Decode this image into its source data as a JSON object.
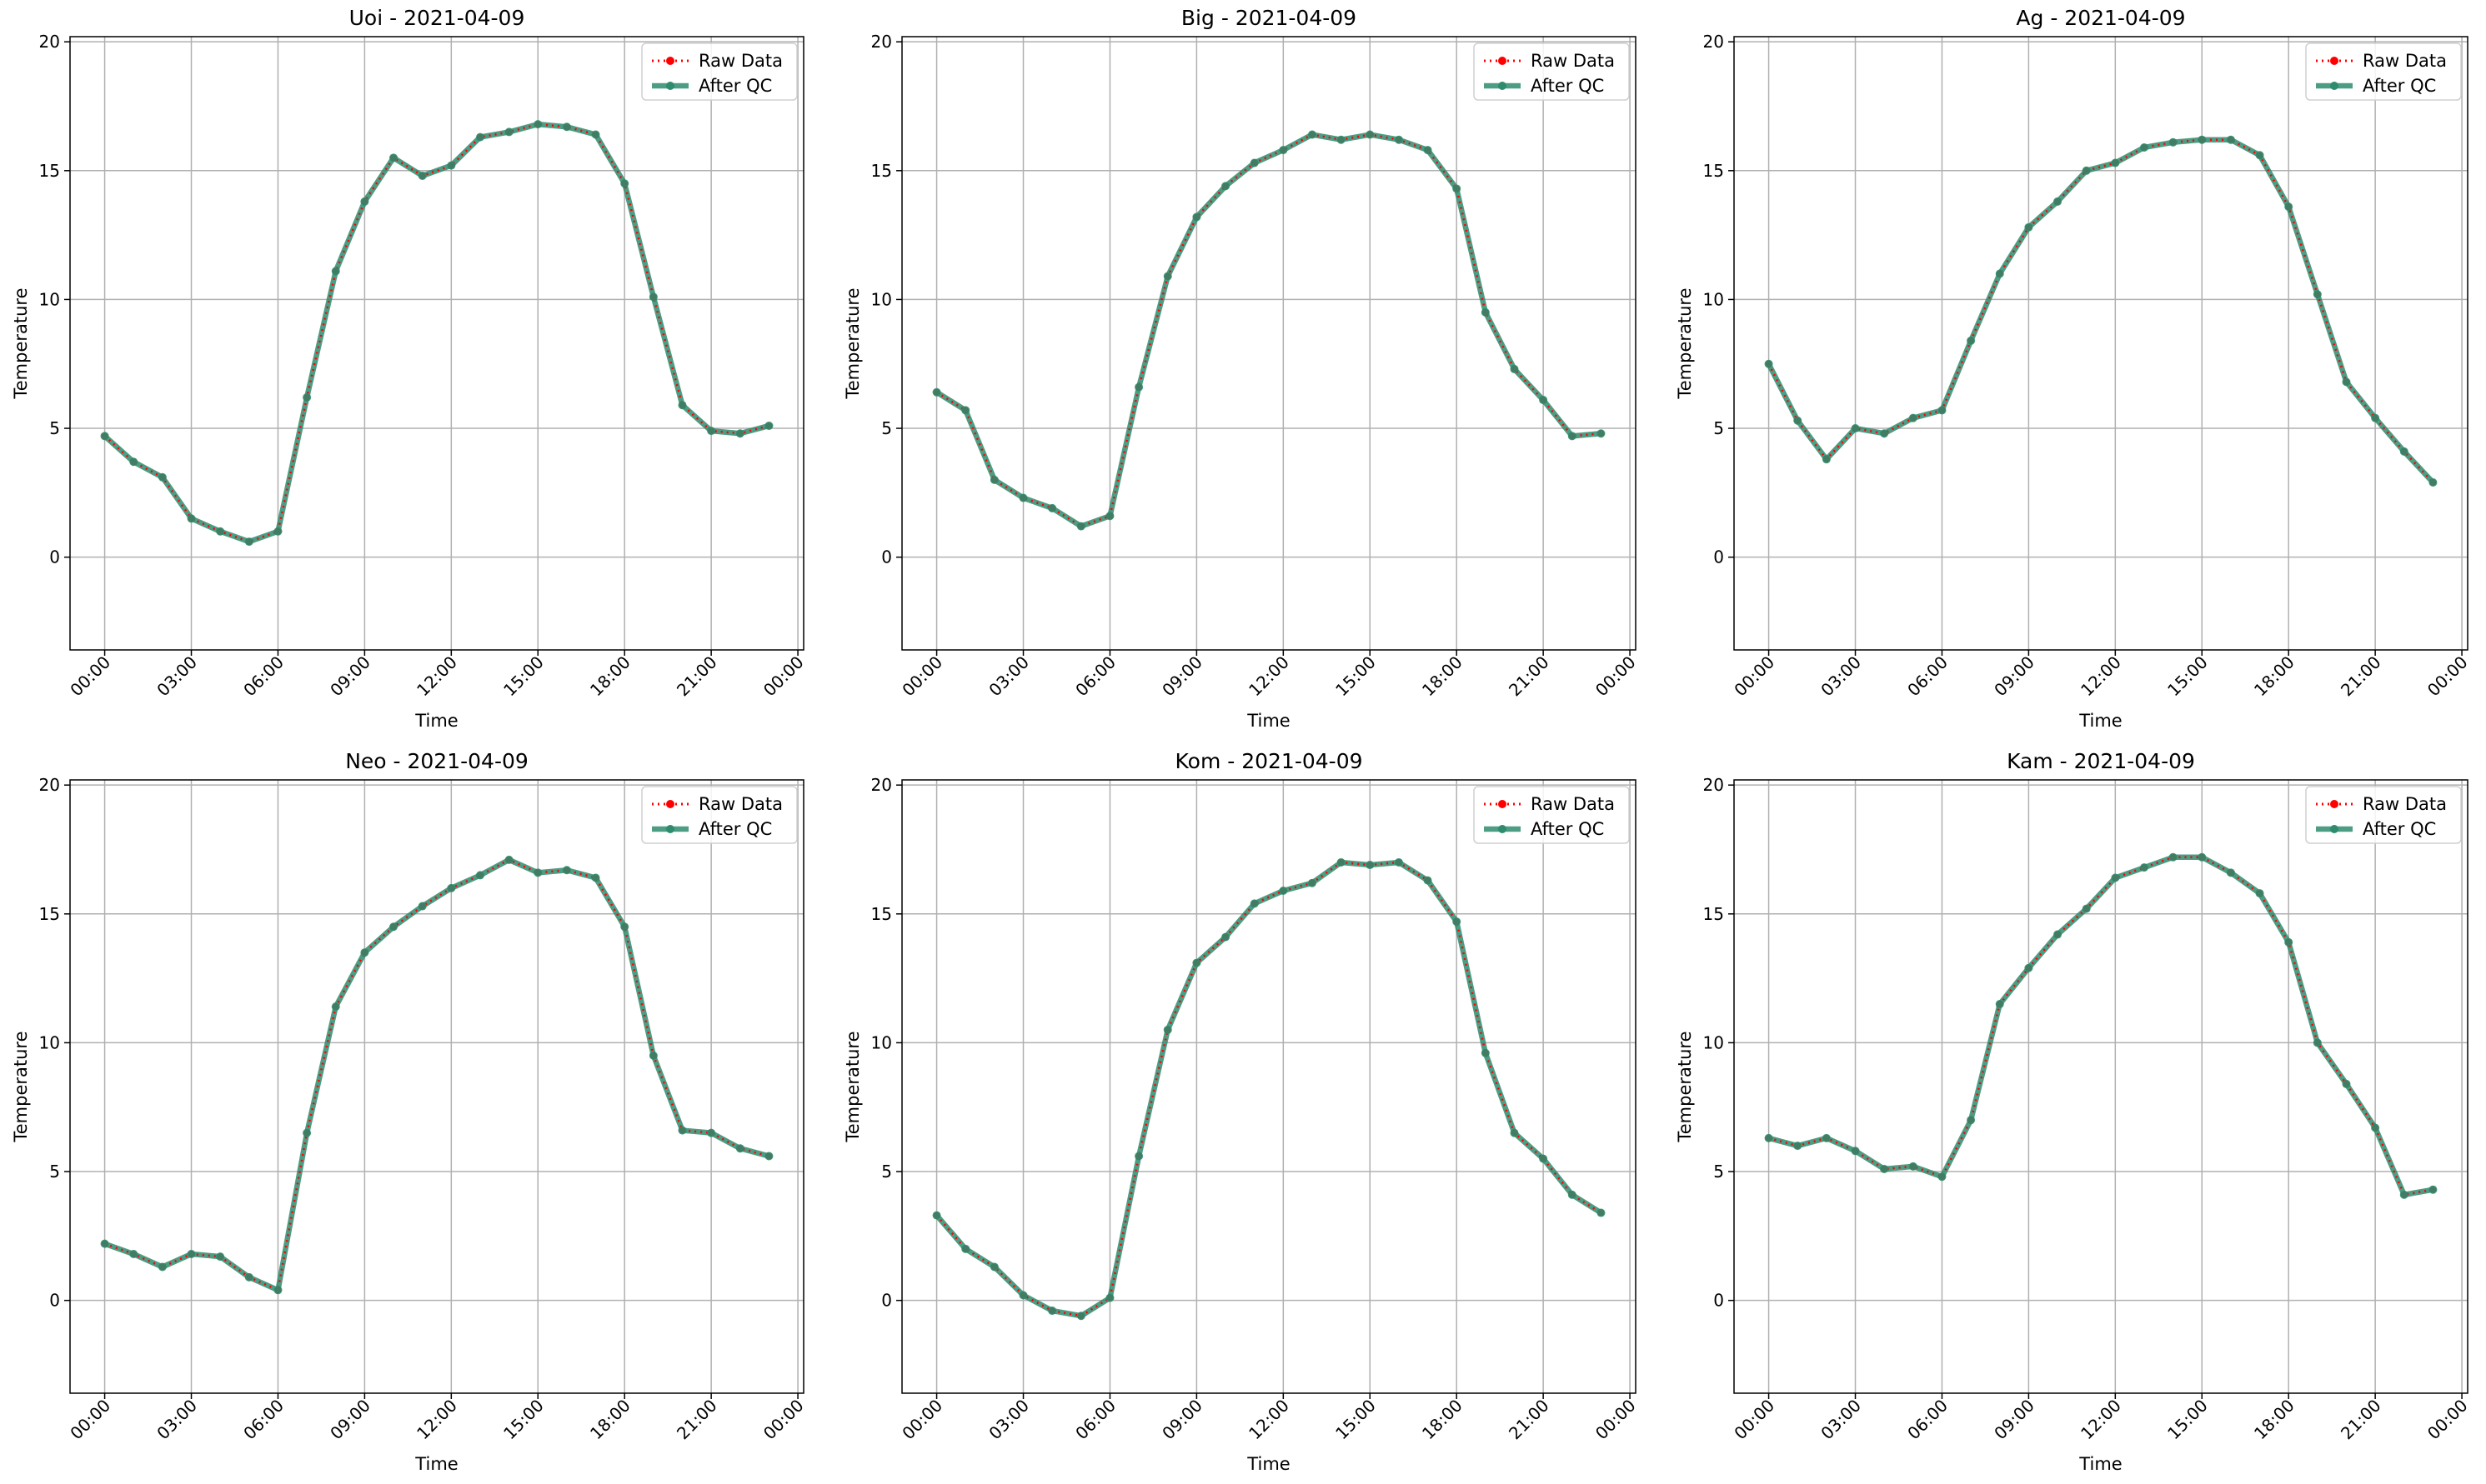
{
  "colors": {
    "raw": "#ff0000",
    "qc": "#2e8b6e",
    "grid": "#b0b0b0"
  },
  "legend": {
    "raw_label": "Raw Data",
    "qc_label": "After QC",
    "placement": "upper right"
  },
  "chart_data": [
    {
      "type": "line",
      "title": "Uoi - 2021-04-09",
      "xlabel": "Time",
      "ylabel": "Temperature",
      "xticks": [
        "00:00",
        "03:00",
        "06:00",
        "09:00",
        "12:00",
        "15:00",
        "18:00",
        "21:00",
        "00:00"
      ],
      "yticks": [
        0,
        5,
        10,
        15,
        20
      ],
      "ylim": [
        -3.6,
        20.2
      ],
      "xlim_hours": [
        -1.2,
        24.2
      ],
      "grid": true,
      "x": [
        0,
        1,
        2,
        3,
        4,
        5,
        6,
        7,
        8,
        9,
        10,
        11,
        12,
        13,
        14,
        15,
        16,
        17,
        18,
        19,
        20,
        21,
        22,
        23
      ],
      "series": [
        {
          "name": "Raw Data",
          "values": [
            4.7,
            3.7,
            3.1,
            1.5,
            1.0,
            0.6,
            1.0,
            6.2,
            11.1,
            13.8,
            15.5,
            14.8,
            15.2,
            16.3,
            16.5,
            16.8,
            16.7,
            16.4,
            14.5,
            10.1,
            5.9,
            4.9,
            4.8,
            5.1
          ]
        },
        {
          "name": "After QC",
          "values": [
            4.7,
            3.7,
            3.1,
            1.5,
            1.0,
            0.6,
            1.0,
            6.2,
            11.1,
            13.8,
            15.5,
            14.8,
            15.2,
            16.3,
            16.5,
            16.8,
            16.7,
            16.4,
            14.5,
            10.1,
            5.9,
            4.9,
            4.8,
            5.1
          ]
        }
      ]
    },
    {
      "type": "line",
      "title": "Big - 2021-04-09",
      "xlabel": "Time",
      "ylabel": "Temperature",
      "xticks": [
        "00:00",
        "03:00",
        "06:00",
        "09:00",
        "12:00",
        "15:00",
        "18:00",
        "21:00",
        "00:00"
      ],
      "yticks": [
        0,
        5,
        10,
        15,
        20
      ],
      "ylim": [
        -3.6,
        20.2
      ],
      "xlim_hours": [
        -1.2,
        24.2
      ],
      "grid": true,
      "x": [
        0,
        1,
        2,
        3,
        4,
        5,
        6,
        7,
        8,
        9,
        10,
        11,
        12,
        13,
        14,
        15,
        16,
        17,
        18,
        19,
        20,
        21,
        22,
        23
      ],
      "series": [
        {
          "name": "Raw Data",
          "values": [
            6.4,
            5.7,
            3.0,
            2.3,
            1.9,
            1.2,
            1.6,
            6.6,
            10.9,
            13.2,
            14.4,
            15.3,
            15.8,
            16.4,
            16.2,
            16.4,
            16.2,
            15.8,
            14.3,
            9.5,
            7.3,
            6.1,
            4.7,
            4.8
          ]
        },
        {
          "name": "After QC",
          "values": [
            6.4,
            5.7,
            3.0,
            2.3,
            1.9,
            1.2,
            1.6,
            6.6,
            10.9,
            13.2,
            14.4,
            15.3,
            15.8,
            16.4,
            16.2,
            16.4,
            16.2,
            15.8,
            14.3,
            9.5,
            7.3,
            6.1,
            4.7,
            4.8
          ]
        }
      ]
    },
    {
      "type": "line",
      "title": "Ag - 2021-04-09",
      "xlabel": "Time",
      "ylabel": "Temperature",
      "xticks": [
        "00:00",
        "03:00",
        "06:00",
        "09:00",
        "12:00",
        "15:00",
        "18:00",
        "21:00",
        "00:00"
      ],
      "yticks": [
        0,
        5,
        10,
        15,
        20
      ],
      "ylim": [
        -3.6,
        20.2
      ],
      "xlim_hours": [
        -1.2,
        24.2
      ],
      "grid": true,
      "x": [
        0,
        1,
        2,
        3,
        4,
        5,
        6,
        7,
        8,
        9,
        10,
        11,
        12,
        13,
        14,
        15,
        16,
        17,
        18,
        19,
        20,
        21,
        22,
        23
      ],
      "series": [
        {
          "name": "Raw Data",
          "values": [
            7.5,
            5.3,
            3.8,
            5.0,
            4.8,
            5.4,
            5.7,
            8.4,
            11.0,
            12.8,
            13.8,
            15.0,
            15.3,
            15.9,
            16.1,
            16.2,
            16.2,
            15.6,
            13.6,
            10.2,
            6.8,
            5.4,
            4.1,
            2.9
          ]
        },
        {
          "name": "After QC",
          "values": [
            7.5,
            5.3,
            3.8,
            5.0,
            4.8,
            5.4,
            5.7,
            8.4,
            11.0,
            12.8,
            13.8,
            15.0,
            15.3,
            15.9,
            16.1,
            16.2,
            16.2,
            15.6,
            13.6,
            10.2,
            6.8,
            5.4,
            4.1,
            2.9
          ]
        }
      ]
    },
    {
      "type": "line",
      "title": "Neo - 2021-04-09",
      "xlabel": "Time",
      "ylabel": "Temperature",
      "xticks": [
        "00:00",
        "03:00",
        "06:00",
        "09:00",
        "12:00",
        "15:00",
        "18:00",
        "21:00",
        "00:00"
      ],
      "yticks": [
        0,
        5,
        10,
        15,
        20
      ],
      "ylim": [
        -3.6,
        20.2
      ],
      "xlim_hours": [
        -1.2,
        24.2
      ],
      "grid": true,
      "x": [
        0,
        1,
        2,
        3,
        4,
        5,
        6,
        7,
        8,
        9,
        10,
        11,
        12,
        13,
        14,
        15,
        16,
        17,
        18,
        19,
        20,
        21,
        22,
        23
      ],
      "series": [
        {
          "name": "Raw Data",
          "values": [
            2.2,
            1.8,
            1.3,
            1.8,
            1.7,
            0.9,
            0.4,
            6.5,
            11.4,
            13.5,
            14.5,
            15.3,
            16.0,
            16.5,
            17.1,
            16.6,
            16.7,
            16.4,
            14.5,
            9.5,
            6.6,
            6.5,
            5.9,
            5.6
          ]
        },
        {
          "name": "After QC",
          "values": [
            2.2,
            1.8,
            1.3,
            1.8,
            1.7,
            0.9,
            0.4,
            6.5,
            11.4,
            13.5,
            14.5,
            15.3,
            16.0,
            16.5,
            17.1,
            16.6,
            16.7,
            16.4,
            14.5,
            9.5,
            6.6,
            6.5,
            5.9,
            5.6
          ]
        }
      ]
    },
    {
      "type": "line",
      "title": "Kom - 2021-04-09",
      "xlabel": "Time",
      "ylabel": "Temperature",
      "xticks": [
        "00:00",
        "03:00",
        "06:00",
        "09:00",
        "12:00",
        "15:00",
        "18:00",
        "21:00",
        "00:00"
      ],
      "yticks": [
        0,
        5,
        10,
        15,
        20
      ],
      "ylim": [
        -3.6,
        20.2
      ],
      "xlim_hours": [
        -1.2,
        24.2
      ],
      "grid": true,
      "x": [
        0,
        1,
        2,
        3,
        4,
        5,
        6,
        7,
        8,
        9,
        10,
        11,
        12,
        13,
        14,
        15,
        16,
        17,
        18,
        19,
        20,
        21,
        22,
        23
      ],
      "series": [
        {
          "name": "Raw Data",
          "values": [
            3.3,
            2.0,
            1.3,
            0.2,
            -0.4,
            -0.6,
            0.1,
            5.6,
            10.5,
            13.1,
            14.1,
            15.4,
            15.9,
            16.2,
            17.0,
            16.9,
            17.0,
            16.3,
            14.7,
            9.6,
            6.5,
            5.5,
            4.1,
            3.4
          ]
        },
        {
          "name": "After QC",
          "values": [
            3.3,
            2.0,
            1.3,
            0.2,
            -0.4,
            -0.6,
            0.1,
            5.6,
            10.5,
            13.1,
            14.1,
            15.4,
            15.9,
            16.2,
            17.0,
            16.9,
            17.0,
            16.3,
            14.7,
            9.6,
            6.5,
            5.5,
            4.1,
            3.4
          ]
        }
      ]
    },
    {
      "type": "line",
      "title": "Kam - 2021-04-09",
      "xlabel": "Time",
      "ylabel": "Temperature",
      "xticks": [
        "00:00",
        "03:00",
        "06:00",
        "09:00",
        "12:00",
        "15:00",
        "18:00",
        "21:00",
        "00:00"
      ],
      "yticks": [
        0,
        5,
        10,
        15,
        20
      ],
      "ylim": [
        -3.6,
        20.2
      ],
      "xlim_hours": [
        -1.2,
        24.2
      ],
      "grid": true,
      "x": [
        0,
        1,
        2,
        3,
        4,
        5,
        6,
        7,
        8,
        9,
        10,
        11,
        12,
        13,
        14,
        15,
        16,
        17,
        18,
        19,
        20,
        21,
        22,
        23
      ],
      "series": [
        {
          "name": "Raw Data",
          "values": [
            6.3,
            6.0,
            6.3,
            5.8,
            5.1,
            5.2,
            4.8,
            7.0,
            11.5,
            12.9,
            14.2,
            15.2,
            16.4,
            16.8,
            17.2,
            17.2,
            16.6,
            15.8,
            13.9,
            10.0,
            8.4,
            6.7,
            4.1,
            4.3
          ]
        },
        {
          "name": "After QC",
          "values": [
            6.3,
            6.0,
            6.3,
            5.8,
            5.1,
            5.2,
            4.8,
            7.0,
            11.5,
            12.9,
            14.2,
            15.2,
            16.4,
            16.8,
            17.2,
            17.2,
            16.6,
            15.8,
            13.9,
            10.0,
            8.4,
            6.7,
            4.1,
            4.3
          ]
        }
      ]
    }
  ]
}
